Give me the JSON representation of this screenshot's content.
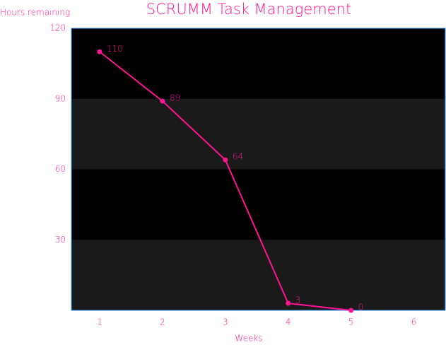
{
  "chart_data": {
    "type": "line",
    "title": "SCRUMM Task Management",
    "x_label": "Weeks",
    "y_label": "Hours remaining",
    "x": [
      1,
      2,
      3,
      4,
      5
    ],
    "values": [
      110,
      89,
      64,
      3,
      0
    ],
    "color": "#ff1493",
    "xlim": [
      0.55,
      6.5
    ],
    "xticks": [
      1,
      2,
      3,
      4,
      5,
      6
    ],
    "ylim": [
      0,
      120
    ],
    "yticks": [
      30,
      60,
      90,
      120
    ],
    "grid": true
  }
}
